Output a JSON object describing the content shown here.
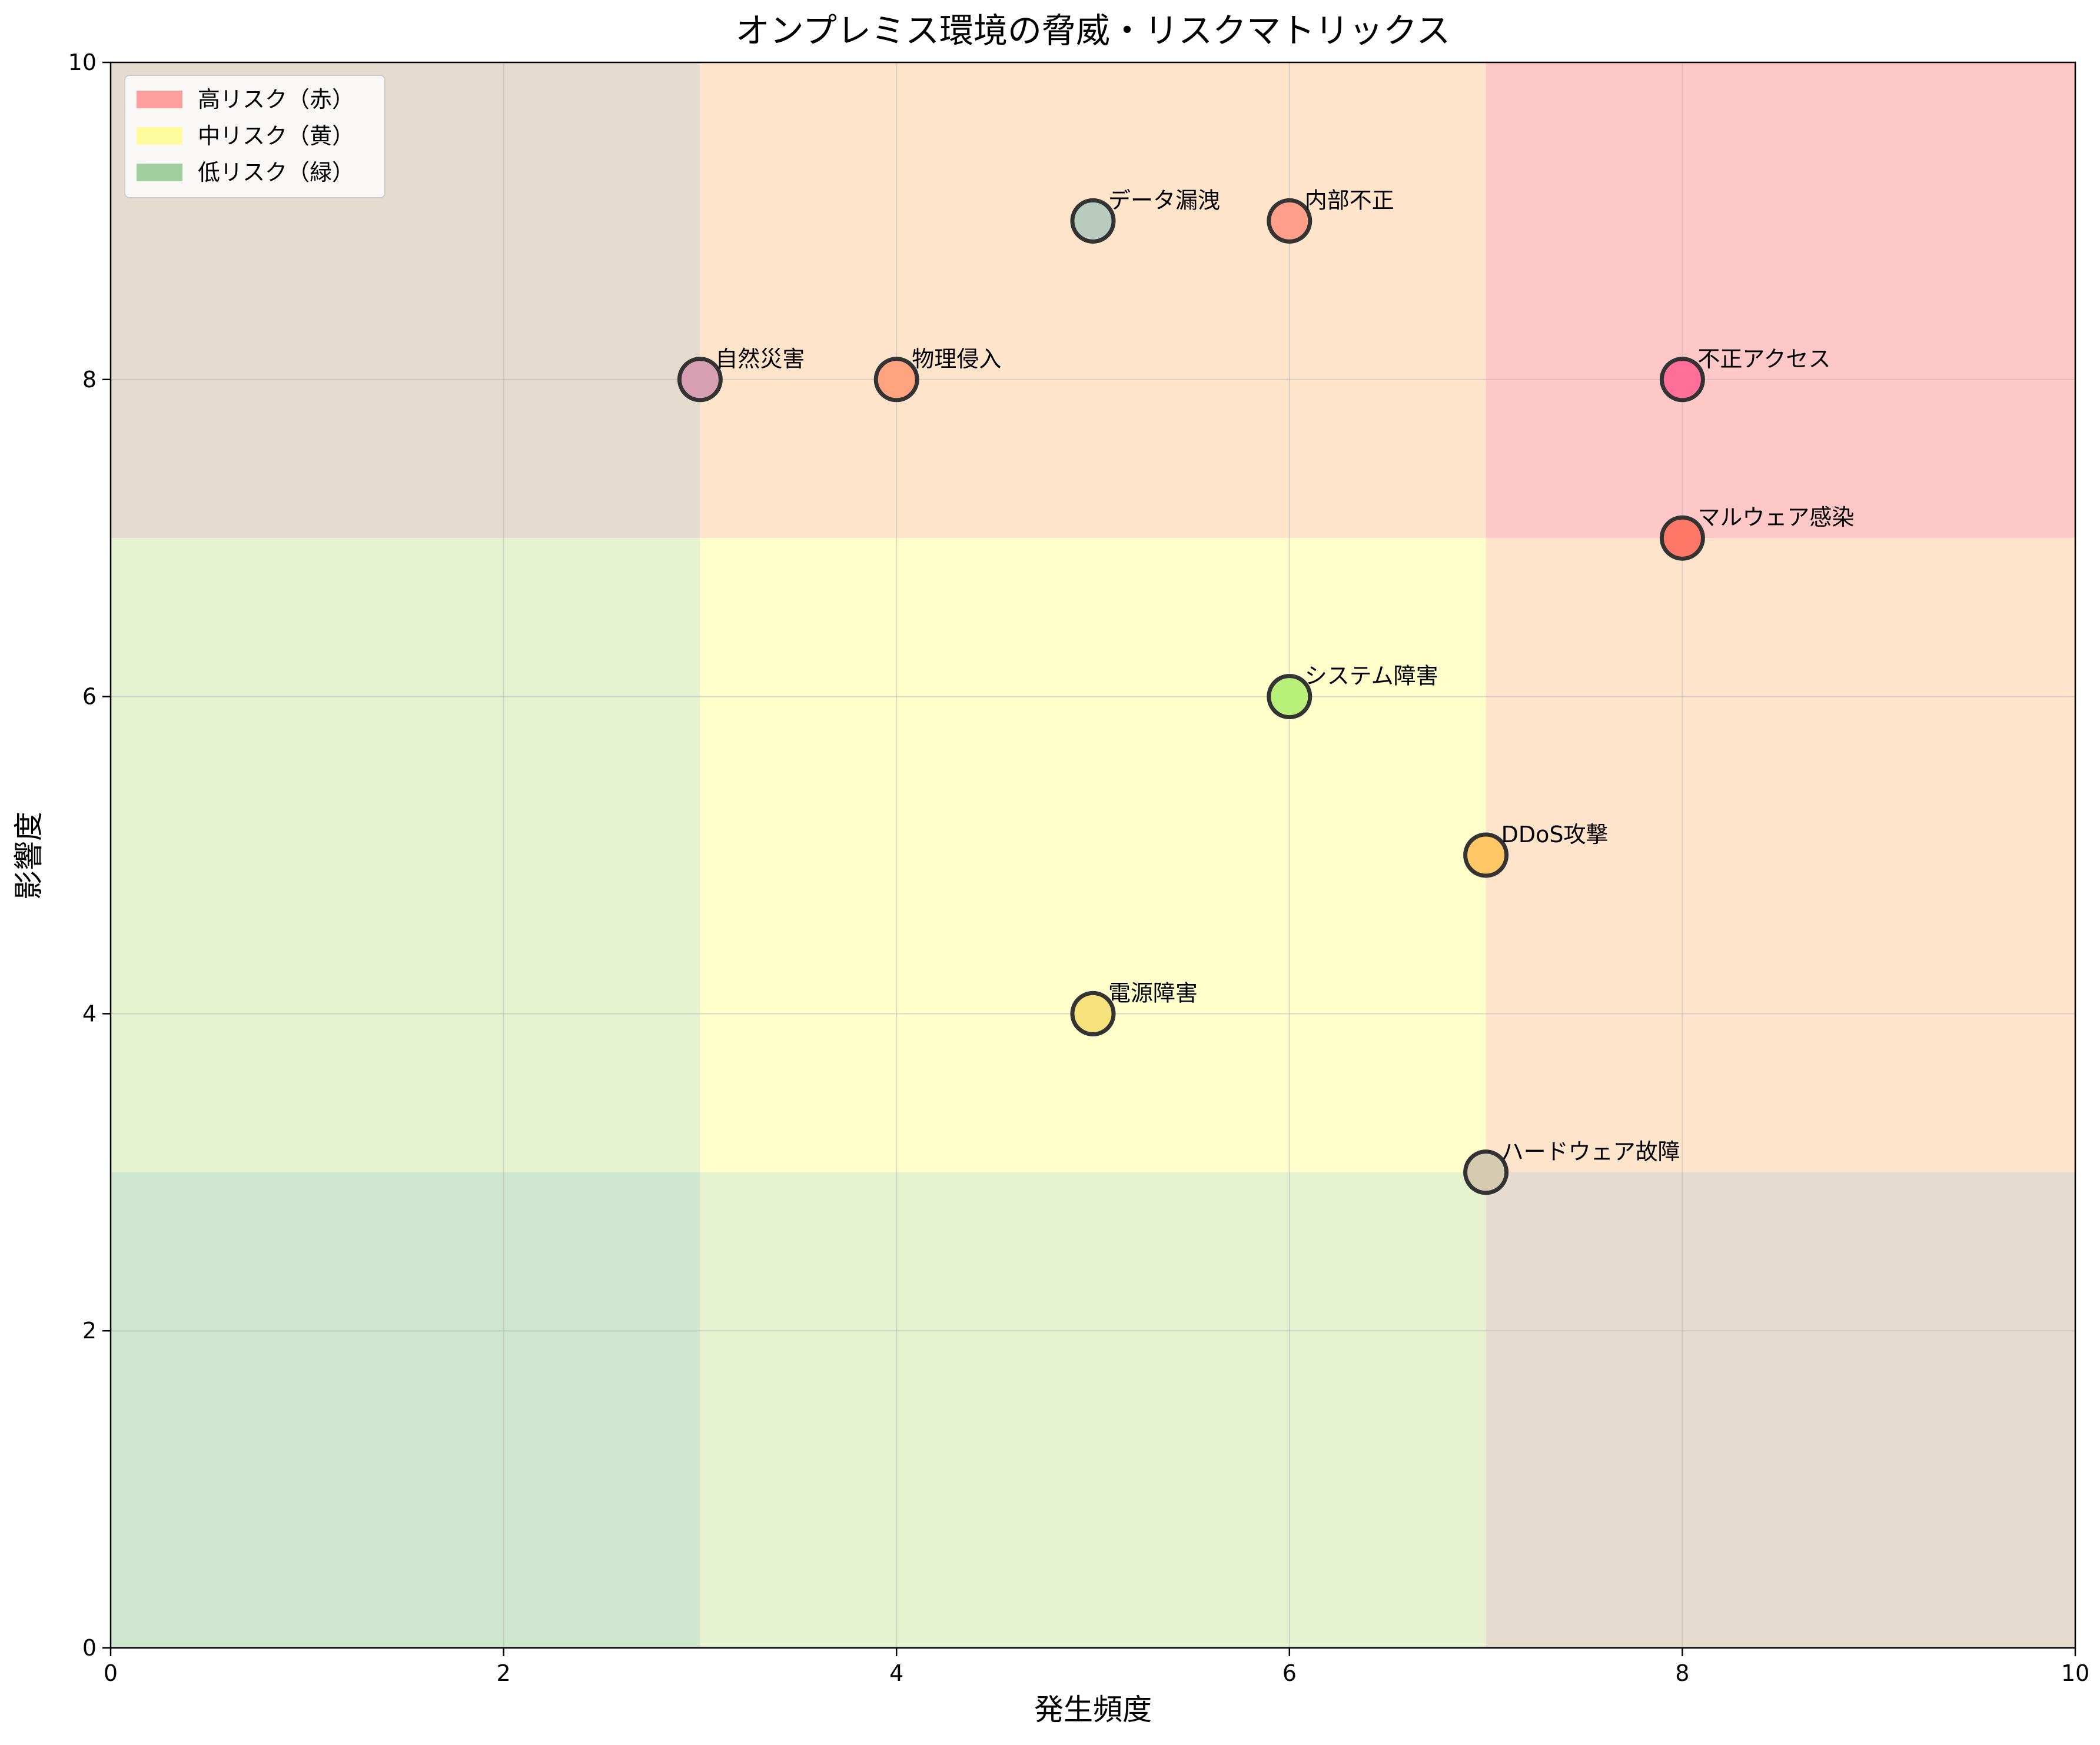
{
  "chart_data": {
    "type": "scatter",
    "title": "オンプレミス環境の脅威・リスクマトリックス",
    "xlabel": "発生頻度",
    "ylabel": "影響度",
    "xlim": [
      0,
      10
    ],
    "ylim": [
      0,
      10
    ],
    "xticks": [
      "0",
      "2",
      "4",
      "6",
      "8",
      "10"
    ],
    "yticks": [
      "0",
      "2",
      "4",
      "6",
      "8",
      "10"
    ],
    "grid": true,
    "legend_position": "top-left",
    "legend": [
      {
        "label": "高リスク（赤）",
        "color": "#ff6666"
      },
      {
        "label": "中リスク（黄）",
        "color": "#ffff66"
      },
      {
        "label": "低リスク（緑）",
        "color": "#66b266"
      }
    ],
    "regions": [
      {
        "x": [
          7,
          10
        ],
        "y": [
          7,
          10
        ],
        "fill": "#ffc8c8"
      },
      {
        "x": [
          3,
          7
        ],
        "y": [
          7,
          10
        ],
        "fill": "#ffe4cc"
      },
      {
        "x": [
          0,
          3
        ],
        "y": [
          7,
          10
        ],
        "fill": "#e6dbcf"
      },
      {
        "x": [
          7,
          10
        ],
        "y": [
          3,
          7
        ],
        "fill": "#ffe4cc"
      },
      {
        "x": [
          3,
          7
        ],
        "y": [
          3,
          7
        ],
        "fill": "#ffffcc"
      },
      {
        "x": [
          0,
          3
        ],
        "y": [
          3,
          7
        ],
        "fill": "#e6f1cf"
      },
      {
        "x": [
          7,
          10
        ],
        "y": [
          0,
          3
        ],
        "fill": "#e6dbcf"
      },
      {
        "x": [
          3,
          7
        ],
        "y": [
          0,
          3
        ],
        "fill": "#e6f1cf"
      },
      {
        "x": [
          0,
          3
        ],
        "y": [
          0,
          3
        ],
        "fill": "#cfe6cf"
      }
    ],
    "points": [
      {
        "label": "不正アクセス",
        "x": 8,
        "y": 8,
        "color": "#ff6f98"
      },
      {
        "label": "マルウェア感染",
        "x": 8,
        "y": 7,
        "color": "#ff7766"
      },
      {
        "label": "DDoS攻撃",
        "x": 7,
        "y": 5,
        "color": "#ffc766"
      },
      {
        "label": "データ漏洩",
        "x": 5,
        "y": 9,
        "color": "#b9cabf"
      },
      {
        "label": "内部不正",
        "x": 6,
        "y": 9,
        "color": "#ff9f8a"
      },
      {
        "label": "物理侵入",
        "x": 4,
        "y": 8,
        "color": "#ffa47f"
      },
      {
        "label": "自然災害",
        "x": 3,
        "y": 8,
        "color": "#d89fb2"
      },
      {
        "label": "ハードウェア故障",
        "x": 7,
        "y": 3,
        "color": "#d4cbb0"
      },
      {
        "label": "電源障害",
        "x": 5,
        "y": 4,
        "color": "#f5e27a"
      },
      {
        "label": "システム障害",
        "x": 6,
        "y": 6,
        "color": "#b8f07a"
      }
    ]
  }
}
